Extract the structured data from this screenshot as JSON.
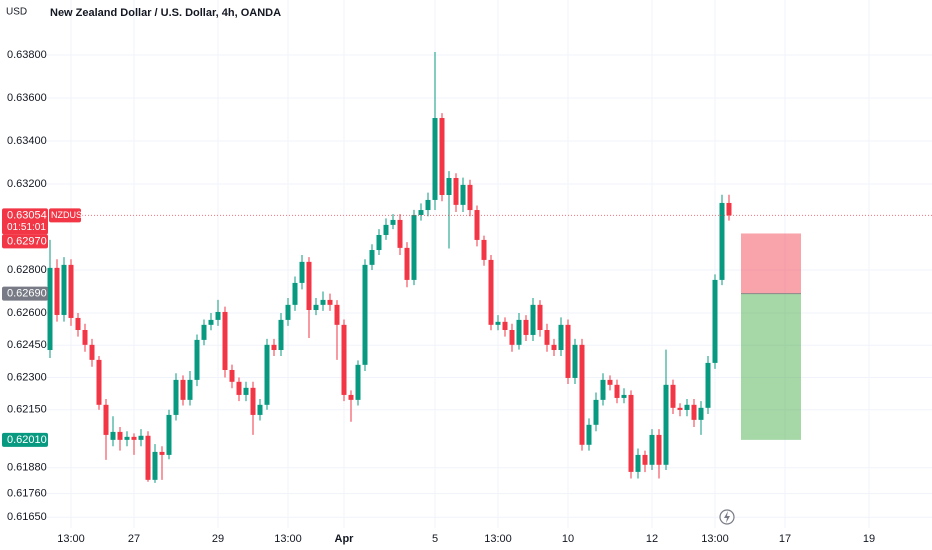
{
  "chart_data": {
    "type": "candlestick",
    "title": "New Zealand Dollar / U.S. Dollar, 4h, OANDA",
    "currency": "USD",
    "symbol": "NZDUSD",
    "countdown": "01:51:01",
    "up_color": "#089981",
    "down_color": "#f23645",
    "grid": true,
    "categories": [
      null,
      null,
      null,
      "13:00",
      null,
      null,
      null,
      null,
      null,
      null,
      null,
      null,
      "27",
      null,
      null,
      null,
      null,
      null,
      null,
      null,
      null,
      null,
      null,
      null,
      "29",
      null,
      null,
      null,
      null,
      null,
      null,
      null,
      null,
      null,
      "13:00",
      null,
      null,
      null,
      null,
      null,
      null,
      null,
      "Apr",
      null,
      null,
      null,
      null,
      null,
      null,
      null,
      null,
      null,
      null,
      null,
      null,
      "5",
      null,
      null,
      null,
      null,
      null,
      null,
      null,
      null,
      "13:00",
      null,
      null,
      null,
      null,
      null,
      null,
      null,
      null,
      null,
      "10",
      null,
      null,
      null,
      null,
      null,
      null,
      null,
      null,
      null,
      null,
      null,
      "12",
      null,
      null,
      null,
      null,
      null,
      null,
      null,
      null,
      "13:00",
      null,
      null,
      null,
      null,
      null,
      null,
      null,
      null,
      null,
      "17",
      null,
      null,
      null,
      null,
      null,
      null,
      null,
      null,
      null,
      null,
      null,
      "19"
    ],
    "open": [
      0.62428,
      0.6281,
      0.62591,
      0.62824,
      0.62577,
      0.62521,
      0.62452,
      0.62382,
      0.62173,
      0.6201,
      0.62047,
      0.6201,
      0.62024,
      0.6201,
      0.62029,
      0.61824,
      0.61954,
      0.6194,
      0.62126,
      0.62289,
      0.62196,
      0.62289,
      0.62475,
      0.62545,
      0.62568,
      0.62605,
      0.62335,
      0.6228,
      0.62219,
      0.62252,
      0.62126,
      0.62173,
      0.62452,
      0.62428,
      0.62568,
      0.62638,
      0.6274,
      0.62838,
      0.62614,
      0.62638,
      0.62661,
      0.62638,
      0.62545,
      0.62219,
      0.62196,
      0.62359,
      0.62824,
      0.62893,
      0.62963,
      0.6301,
      0.63033,
      0.62903,
      0.62754,
      0.63056,
      0.63079,
      0.63126,
      0.63507,
      0.63149,
      0.63228,
      0.63103,
      0.63196,
      0.63079,
      0.6294,
      0.62847,
      0.62545,
      0.62559,
      0.62521,
      0.62452,
      0.62568,
      0.62498,
      0.62638,
      0.62521,
      0.62452,
      0.62428,
      0.62545,
      0.62298,
      0.62452,
      0.61987,
      0.6208,
      0.62196,
      0.62289,
      0.62266,
      0.62205,
      0.62219,
      0.61861,
      0.6194,
      0.61894,
      0.62033,
      0.61894,
      0.62266,
      0.62159,
      0.62149,
      0.62173,
      0.62103,
      0.62159,
      0.62368,
      0.62754,
      0.63112,
      null,
      null,
      null,
      null,
      null,
      null,
      null,
      null,
      null,
      null,
      null,
      null,
      null,
      null,
      null,
      null,
      null,
      null,
      null,
      null
    ],
    "high": [
      0.6294,
      0.6285,
      0.6286,
      0.6285,
      0.626,
      0.6255,
      0.6248,
      0.624,
      0.622,
      0.6212,
      0.6207,
      0.6205,
      0.6204,
      0.6206,
      0.6205,
      0.6199,
      0.6198,
      0.6215,
      0.6232,
      0.6231,
      0.6233,
      0.625,
      0.6257,
      0.626,
      0.62661,
      0.6263,
      0.6236,
      0.623,
      0.6228,
      0.6228,
      0.622,
      0.6248,
      0.6248,
      0.626,
      0.6267,
      0.6277,
      0.6287,
      0.6286,
      0.6267,
      0.627,
      0.6269,
      0.6266,
      0.6257,
      0.6224,
      0.6238,
      0.6285,
      0.6292,
      0.6299,
      0.6304,
      0.6306,
      0.6306,
      0.6293,
      0.6308,
      0.6311,
      0.6316,
      0.63814,
      0.6353,
      0.6326,
      0.6325,
      0.6323,
      0.6322,
      0.631,
      0.6296,
      0.6287,
      0.6259,
      0.6258,
      0.6255,
      0.626,
      0.6259,
      0.6267,
      0.6266,
      0.6255,
      0.6248,
      0.6258,
      0.6257,
      0.6248,
      0.6248,
      0.6211,
      0.6223,
      0.6232,
      0.6231,
      0.6229,
      0.6225,
      0.6224,
      0.6197,
      0.6196,
      0.6206,
      0.6206,
      0.6243,
      0.6229,
      0.6218,
      0.622,
      0.622,
      0.6219,
      0.624,
      0.6278,
      0.6315,
      0.6315,
      null,
      null,
      null,
      null,
      null,
      null,
      null,
      null,
      null,
      null,
      null,
      null,
      null,
      null,
      null,
      null,
      null,
      null,
      null,
      null
    ],
    "low": [
      0.62391,
      0.6256,
      0.6256,
      0.6254,
      0.6249,
      0.6242,
      0.6235,
      0.6215,
      0.61917,
      0.6198,
      0.6196,
      0.6198,
      0.6194,
      0.6198,
      0.61815,
      0.6181,
      0.61824,
      0.6192,
      0.621,
      0.6217,
      0.6217,
      0.6226,
      0.6245,
      0.6252,
      0.6254,
      0.623,
      0.6225,
      0.6219,
      0.6219,
      0.62033,
      0.621,
      0.6215,
      0.624,
      0.624,
      0.6254,
      0.6261,
      0.6271,
      0.62484,
      0.6259,
      0.6261,
      0.6261,
      0.62382,
      0.6219,
      0.62094,
      0.6217,
      0.6233,
      0.628,
      0.6287,
      0.6294,
      0.6299,
      0.6287,
      0.6272,
      0.6273,
      0.6303,
      0.6305,
      0.63079,
      0.6312,
      0.629,
      0.6307,
      0.6307,
      0.6305,
      0.6291,
      0.6282,
      0.6252,
      0.6252,
      0.6249,
      0.6242,
      0.6243,
      0.6247,
      0.6247,
      0.6249,
      0.6242,
      0.624,
      0.624,
      0.6227,
      0.6227,
      0.6196,
      0.6196,
      0.6205,
      0.6217,
      0.6224,
      0.6218,
      0.6218,
      0.6183,
      0.6183,
      0.6186,
      0.6187,
      0.6183,
      0.6187,
      0.6213,
      0.6212,
      0.6212,
      0.6207,
      0.62033,
      0.6213,
      0.6234,
      0.6273,
      0.6303,
      null,
      null,
      null,
      null,
      null,
      null,
      null,
      null,
      null,
      null,
      null,
      null,
      null,
      null,
      null,
      null,
      null,
      null,
      null,
      null
    ],
    "close": [
      0.6281,
      0.62591,
      0.62824,
      0.62577,
      0.62521,
      0.62452,
      0.62382,
      0.62173,
      0.62033,
      0.62047,
      0.6201,
      0.62024,
      0.6201,
      0.62029,
      0.61824,
      0.61954,
      0.6194,
      0.62126,
      0.62289,
      0.62196,
      0.62289,
      0.62475,
      0.62545,
      0.62568,
      0.62605,
      0.62335,
      0.6228,
      0.62219,
      0.62252,
      0.62126,
      0.62173,
      0.62452,
      0.62428,
      0.62568,
      0.62638,
      0.6274,
      0.62838,
      0.62614,
      0.62638,
      0.62661,
      0.62638,
      0.62545,
      0.62219,
      0.62196,
      0.62359,
      0.62824,
      0.62893,
      0.62963,
      0.6301,
      0.63033,
      0.62903,
      0.62754,
      0.63056,
      0.63079,
      0.63126,
      0.63507,
      0.63149,
      0.63228,
      0.63103,
      0.63196,
      0.63079,
      0.6294,
      0.62847,
      0.62545,
      0.62559,
      0.62521,
      0.62452,
      0.62568,
      0.62498,
      0.62638,
      0.62521,
      0.62452,
      0.62428,
      0.62545,
      0.62298,
      0.62452,
      0.61987,
      0.6208,
      0.62196,
      0.62289,
      0.62266,
      0.62205,
      0.62219,
      0.61861,
      0.6194,
      0.61894,
      0.62033,
      0.61894,
      0.62266,
      0.62159,
      0.62149,
      0.62173,
      0.62103,
      0.62159,
      0.62368,
      0.62754,
      0.63112,
      0.63054,
      null,
      null,
      null,
      null,
      null,
      null,
      null,
      null,
      null,
      null,
      null,
      null,
      null,
      null,
      null,
      null,
      null,
      null,
      null,
      null
    ],
    "ylim": [
      0.616,
      0.64056
    ],
    "yticks": [
      {
        "value": 0.638,
        "label": "0.63800"
      },
      {
        "value": 0.636,
        "label": "0.63600"
      },
      {
        "value": 0.634,
        "label": "0.63400"
      },
      {
        "value": 0.632,
        "label": "0.63200"
      },
      {
        "value": 0.628,
        "label": "0.62800"
      },
      {
        "value": 0.626,
        "label": "0.62600"
      },
      {
        "value": 0.6245,
        "label": "0.62450"
      },
      {
        "value": 0.623,
        "label": "0.62300"
      },
      {
        "value": 0.6215,
        "label": "0.62150"
      },
      {
        "value": 0.6188,
        "label": "0.61880"
      },
      {
        "value": 0.6176,
        "label": "0.61760"
      },
      {
        "value": 0.6165,
        "label": "0.61650"
      }
    ],
    "last_price": {
      "value": 0.63054,
      "label": "0.63054"
    },
    "position": {
      "stop": {
        "value": 0.6297,
        "label": "0.62970"
      },
      "entry": {
        "value": 0.6269,
        "label": "0.62690"
      },
      "target": {
        "value": 0.6201,
        "label": "0.62010"
      }
    }
  }
}
